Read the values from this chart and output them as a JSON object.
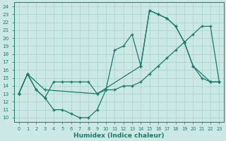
{
  "xlabel": "Humidex (Indice chaleur)",
  "bg_color": "#cce8e5",
  "grid_color": "#b0d8d4",
  "line_color": "#1a7a6a",
  "xlim": [
    -0.5,
    23.5
  ],
  "ylim": [
    9.5,
    24.5
  ],
  "yticks": [
    10,
    11,
    12,
    13,
    14,
    15,
    16,
    17,
    18,
    19,
    20,
    21,
    22,
    23,
    24
  ],
  "xticks": [
    0,
    1,
    2,
    3,
    4,
    5,
    6,
    7,
    8,
    9,
    10,
    11,
    12,
    13,
    14,
    15,
    16,
    17,
    18,
    19,
    20,
    21,
    22,
    23
  ],
  "line1_x": [
    0,
    1,
    2,
    3,
    4,
    5,
    6,
    7,
    8,
    9,
    10,
    11,
    12,
    13,
    14,
    15,
    16,
    17,
    18,
    19,
    20,
    21,
    22,
    23
  ],
  "line1_y": [
    13,
    15.5,
    13.5,
    12.5,
    11,
    11,
    10.5,
    10,
    10,
    11,
    13.5,
    18.5,
    19.0,
    20.5,
    16.5,
    23.5,
    23,
    22.5,
    21.5,
    19.5,
    16.5,
    15,
    14.5,
    14.5
  ],
  "line2_x": [
    0,
    1,
    3,
    9,
    14,
    15,
    16,
    17,
    18,
    19,
    20,
    22,
    23
  ],
  "line2_y": [
    13,
    15.5,
    13.5,
    13,
    16.5,
    23.5,
    23,
    22.5,
    21.5,
    19.5,
    16.5,
    14.5,
    14.5
  ],
  "line3_x": [
    0,
    1,
    2,
    3,
    4,
    5,
    6,
    7,
    8,
    9,
    10,
    11,
    12,
    13,
    14,
    15,
    16,
    17,
    18,
    19,
    20,
    21,
    22,
    23
  ],
  "line3_y": [
    13,
    15.5,
    13.5,
    12.5,
    14.5,
    14.5,
    14.5,
    14.5,
    14.5,
    13,
    13.5,
    13.5,
    14,
    14,
    14.5,
    15.5,
    16.5,
    17.5,
    18.5,
    19.5,
    20.5,
    21.5,
    21.5,
    14.5
  ]
}
